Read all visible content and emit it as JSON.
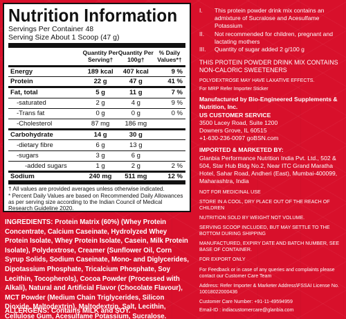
{
  "nutrition": {
    "title": "Nutrition Information",
    "servings_per_container": "Servings Per Container 48",
    "serving_size": "Serving Size About 1 Scoop (47 g)",
    "headers": [
      "",
      "Quantity Per Serving†",
      "Quantity Per 100g†",
      "% Daily Values*†"
    ],
    "rows": [
      {
        "name": "Energy",
        "per_serving": "189 kcal",
        "per_100g": "407 kcal",
        "dv": "9 %"
      },
      {
        "name": "Protein",
        "per_serving": "22 g",
        "per_100g": "47 g",
        "dv": "41 %"
      },
      {
        "name": "Fat, total",
        "per_serving": "5 g",
        "per_100g": "11 g",
        "dv": "7 %"
      },
      {
        "name": "-saturated",
        "per_serving": "2 g",
        "per_100g": "4 g",
        "dv": "9 %"
      },
      {
        "name": "-Trans fat",
        "per_serving": "0 g",
        "per_100g": "0 g",
        "dv": "0 %"
      },
      {
        "name": "-Cholesterol",
        "per_serving": "87 mg",
        "per_100g": "186 mg",
        "dv": ""
      },
      {
        "name": "Carbohydrate",
        "per_serving": "14 g",
        "per_100g": "30 g",
        "dv": ""
      },
      {
        "name": "-dietary fibre",
        "per_serving": "6 g",
        "per_100g": "13 g",
        "dv": ""
      },
      {
        "name": "-sugars",
        "per_serving": "3 g",
        "per_100g": "6 g",
        "dv": ""
      },
      {
        "name": "-added sugars",
        "per_serving": "1 g",
        "per_100g": "2 g",
        "dv": "2 %"
      },
      {
        "name": "Sodium",
        "per_serving": "240 mg",
        "per_100g": "511 mg",
        "dv": "12 %"
      }
    ],
    "footnote_1": "† All values are provided averages unless otherwise indicated.",
    "footnote_2": "* Percent Daily Values are based on Recommended Daily Allowances as per serving size according to the Indian Council of Medical Research Guideline 2020."
  },
  "ingredients": {
    "label": "INGREDIENTS:",
    "text": "Protein Matrix (60%) (Whey Protein Concentrate, Calcium Caseinate, Hydrolyzed Whey Protein Isolate, Whey Protein Isolate, Casein, Milk Protein Isolate), Polydextrose, Creamer (Sunflower Oil, Corn Syrup Solids, Sodium Caseinate, Mono- and Diglycerides, Dipotassium Phosphate, Tricalcium Phosphate, Soy Lecithin, Tocopherols), Cocoa Powder (Processed with Alkali), Natural and Artificial Flavor (Chocolate Flavour), MCT Powder (Medium Chain Triglycerides, Silicon Dioxide, Maltodextrin), Maltodextrin, Salt, Lecithin, Cellulose Gum, Acesulfame Potassium, Sucralose."
  },
  "allergens": {
    "label": "ALLERGENS:",
    "text": "Contains MILK and SOY."
  },
  "right": {
    "notes": [
      {
        "num": "I.",
        "text": "This protein powder drink mix contains an admixture of Sucralose and Acesulfame Potassium"
      },
      {
        "num": "II.",
        "text": "Not recommended for children, pregnant and lactating mothers"
      },
      {
        "num": "III.",
        "text": "Quantity of sugar added 2 g/100 g"
      }
    ],
    "sweeteners": "THIS PROTEIN POWDER DRINK MIX CONTAINS NON-CALORIC SWEETENERS",
    "laxative": "POLYDEXTROSE MAY HAVE LAXATIVE EFFECTS.",
    "mrp_note": "For MRP Refer Importer Sticker",
    "manufactured": {
      "heading": "Manufactured by Bio-Engineered Supplements & Nutrition, Inc.",
      "heading2": "US CUSTOMER SERVICE",
      "address1": "3500 Lacey Road, Suite 1200",
      "address2": "Downers Grove, IL 60515",
      "contact": "+1-630-236-0097  goBSN.com"
    },
    "imported": {
      "heading": "IMPORTED & MARKETED BY:",
      "text": "Glanbia Performance Nutrition India Pvt. Ltd., 502 & 504, Star Hub Bldg No.2, Near ITC Grand Maratha Hotel, Sahar Road, Andheri (East), Mumbai-400099, Maharashtra, India"
    },
    "medicinal": "NOT FOR MEDICINAL USE",
    "storage": "STORE IN A COOL, DRY PLACE OUT OF THE REACH OF CHILDREN",
    "sold_by_weight": "NUTRITION SOLD BY WEIGHT NOT VOLUME.",
    "scoop": "SERVING SCOOP INCLUDED, BUT MAY SETTLE TO THE BOTTOM DURING SHIPPING",
    "mfg_date": "MANUFACTURED, EXPIRY DATE AND BATCH NUMBER, SEE BASE OF CONTAINER.",
    "export": "FOR EXPORT ONLY",
    "feedback": "For Feedback or in case of any queries and complaints please contact our Customer Care Team",
    "address_ref": "Address: Refer Importer & Marketer Address\\FSSAI License No. 10018022000436",
    "customer_care": "Customer Care Number: +91-11-49594959",
    "email": "Email-ID : indiacustomercare@glanbia.com"
  }
}
